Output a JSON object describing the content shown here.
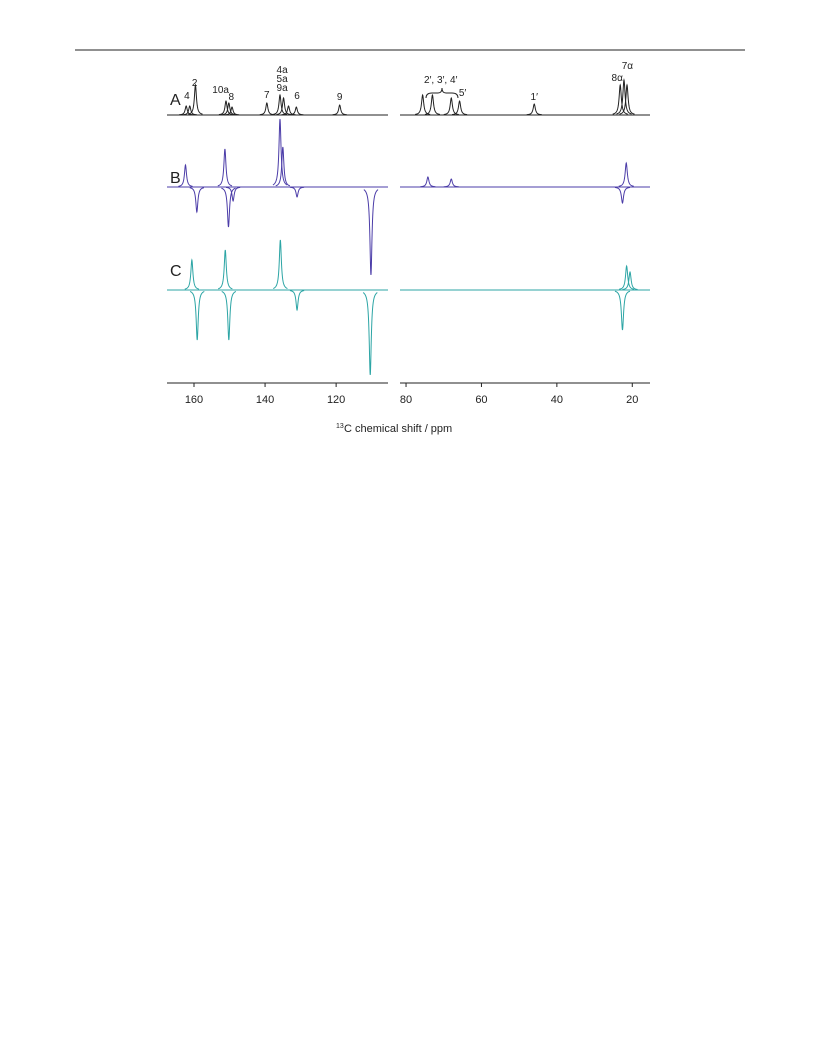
{
  "chart_data": {
    "type": "spectrum",
    "xlabel_sup": "13",
    "xlabel": "C chemical shift / ppm",
    "panels": [
      {
        "xlim": [
          167.6,
          105.4
        ],
        "xticks": [
          160,
          140,
          120
        ]
      },
      {
        "xlim": [
          81.6,
          15.3
        ],
        "xticks": [
          80,
          60,
          40,
          20
        ]
      }
    ],
    "series": [
      {
        "name": "A",
        "color": "#222222",
        "peaks": [
          {
            "x": 162.2,
            "height": 9
          },
          {
            "x": 161.2,
            "height": 9
          },
          {
            "x": 159.6,
            "height": 30
          },
          {
            "x": 151.0,
            "height": 14
          },
          {
            "x": 150.2,
            "height": 12
          },
          {
            "x": 149.3,
            "height": 8
          },
          {
            "x": 139.5,
            "height": 12
          },
          {
            "x": 135.8,
            "height": 20
          },
          {
            "x": 134.8,
            "height": 17
          },
          {
            "x": 133.4,
            "height": 9
          },
          {
            "x": 131.2,
            "height": 8
          },
          {
            "x": 119.0,
            "height": 10
          },
          {
            "x": 75.6,
            "height": 20
          },
          {
            "x": 73.0,
            "height": 20
          },
          {
            "x": 68.0,
            "height": 17
          },
          {
            "x": 65.8,
            "height": 14
          },
          {
            "x": 46.0,
            "height": 11
          },
          {
            "x": 23.2,
            "height": 30
          },
          {
            "x": 22.2,
            "height": 35
          },
          {
            "x": 21.4,
            "height": 30
          }
        ]
      },
      {
        "name": "B",
        "color": "#4b3ca8",
        "peaks": [
          {
            "x": 162.4,
            "height": 22
          },
          {
            "x": 159.2,
            "height": -25
          },
          {
            "x": 151.3,
            "height": 38
          },
          {
            "x": 150.3,
            "height": -40
          },
          {
            "x": 149.0,
            "height": -14
          },
          {
            "x": 135.8,
            "height": 68
          },
          {
            "x": 135.0,
            "height": 40
          },
          {
            "x": 131.0,
            "height": -10
          },
          {
            "x": 110.2,
            "height": -88
          },
          {
            "x": 74.2,
            "height": 10
          },
          {
            "x": 68.0,
            "height": 8
          },
          {
            "x": 22.6,
            "height": -16
          },
          {
            "x": 21.6,
            "height": 24
          }
        ]
      },
      {
        "name": "C",
        "color": "#2ca5a5",
        "peaks": [
          {
            "x": 160.6,
            "height": 30
          },
          {
            "x": 159.1,
            "height": -50
          },
          {
            "x": 151.2,
            "height": 40
          },
          {
            "x": 150.2,
            "height": -50
          },
          {
            "x": 135.7,
            "height": 50
          },
          {
            "x": 131.0,
            "height": -20
          },
          {
            "x": 110.4,
            "height": -85
          },
          {
            "x": 22.6,
            "height": -40
          },
          {
            "x": 21.5,
            "height": 24
          },
          {
            "x": 20.6,
            "height": 18
          }
        ]
      }
    ],
    "annotations": [
      {
        "text": "4",
        "x": 162.0
      },
      {
        "text": "2",
        "x": 159.8
      },
      {
        "text": "10a",
        "x": 152.5
      },
      {
        "text": "8",
        "x": 149.5
      },
      {
        "text": "7",
        "x": 139.5
      },
      {
        "text": "4a",
        "x": 135.2
      },
      {
        "text": "5a",
        "x": 135.2
      },
      {
        "text": "9a",
        "x": 135.2
      },
      {
        "text": "6",
        "x": 131.0
      },
      {
        "text": "9",
        "x": 119.0
      },
      {
        "text": "2′, 3′, 4′",
        "x": 70.8
      },
      {
        "text": "5′",
        "x": 65.0
      },
      {
        "text": "1′",
        "x": 46.0
      },
      {
        "text": "8α",
        "x": 24.0
      },
      {
        "text": "7α",
        "x": 21.3
      }
    ]
  }
}
